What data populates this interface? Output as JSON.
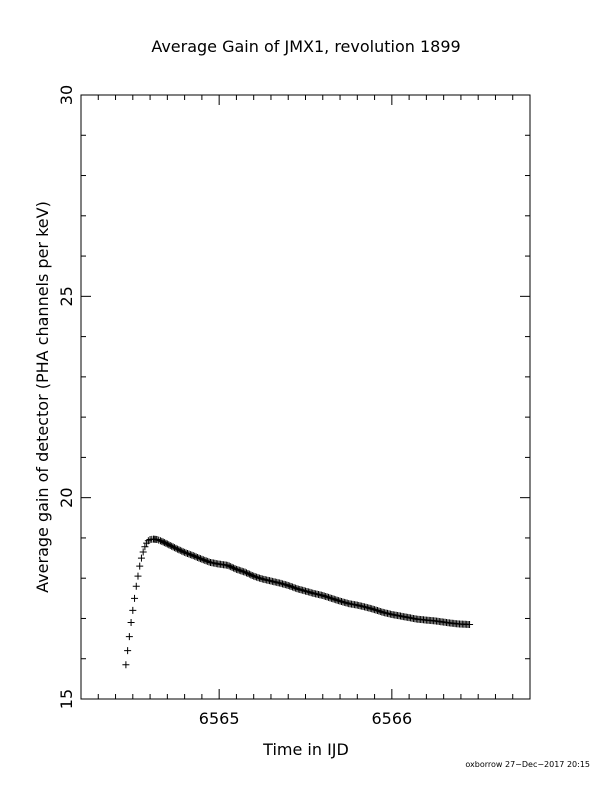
{
  "chart_data": {
    "type": "scatter",
    "title": "Average Gain of JMX1, revolution 1899",
    "xlabel": "Time in IJD",
    "ylabel": "Average gain of detector (PHA channels per keV)",
    "xlim": [
      6564.2,
      6566.8
    ],
    "ylim": [
      15,
      30
    ],
    "x_ticks": [
      6565,
      6566
    ],
    "y_ticks": [
      15,
      20,
      25,
      30
    ],
    "grid": false,
    "legend": "none",
    "marker": "plus",
    "series": [
      {
        "x": [
          6564.46,
          6564.47,
          6564.48,
          6564.49,
          6564.5,
          6564.51,
          6564.52,
          6564.53,
          6564.54,
          6564.55,
          6564.56,
          6564.57,
          6564.58,
          6564.59,
          6564.6,
          6564.62,
          6564.64,
          6564.66,
          6564.7,
          6564.75,
          6564.8,
          6564.85,
          6564.9,
          6564.95,
          6565.0,
          6565.05,
          6565.1,
          6565.15,
          6565.2,
          6565.25,
          6565.3,
          6565.35,
          6565.4,
          6565.45,
          6565.5,
          6565.55,
          6565.6,
          6565.65,
          6565.7,
          6565.75,
          6565.8,
          6565.85,
          6565.9,
          6565.95,
          6566.0,
          6566.05,
          6566.1,
          6566.15,
          6566.2,
          6566.25,
          6566.3,
          6566.35,
          6566.4,
          6566.45
        ],
        "y": [
          15.85,
          16.2,
          16.55,
          16.9,
          17.2,
          17.5,
          17.8,
          18.05,
          18.3,
          18.5,
          18.65,
          18.78,
          18.87,
          18.93,
          18.96,
          18.97,
          18.96,
          18.93,
          18.85,
          18.74,
          18.64,
          18.56,
          18.47,
          18.39,
          18.35,
          18.32,
          18.22,
          18.15,
          18.05,
          17.98,
          17.93,
          17.88,
          17.82,
          17.74,
          17.68,
          17.62,
          17.57,
          17.5,
          17.43,
          17.37,
          17.33,
          17.28,
          17.22,
          17.15,
          17.1,
          17.06,
          17.02,
          16.98,
          16.96,
          16.94,
          16.91,
          16.88,
          16.86,
          16.85
        ]
      }
    ]
  },
  "footer": {
    "stamp": "oxborrow 27−Dec−2017 20:15"
  }
}
